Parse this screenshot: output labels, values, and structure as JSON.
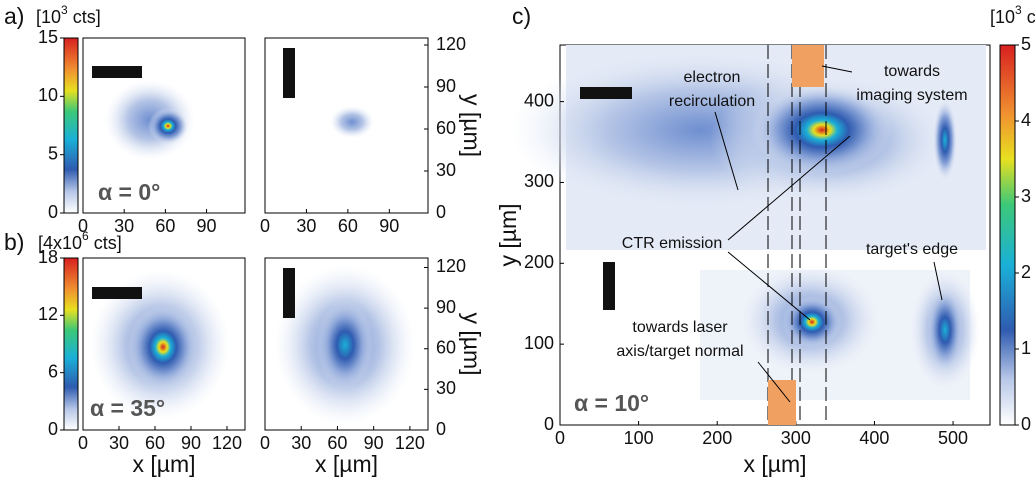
{
  "chart_data": [
    {
      "type": "colorbar",
      "panel_label": "a)",
      "unit": {
        "base": "[10",
        "exp": "3",
        "rest": " cts]"
      },
      "ylim": [
        0,
        15
      ],
      "yticks": [
        0,
        5,
        10,
        15
      ]
    },
    {
      "type": "heatmap",
      "xlim": [
        0,
        118
      ],
      "ylim": [
        0,
        125
      ],
      "xticks": [
        0,
        30,
        60,
        90
      ],
      "annotation": "α = 0°"
    },
    {
      "type": "heatmap",
      "xlim": [
        0,
        118
      ],
      "ylim": [
        0,
        125
      ],
      "xticks": [
        0,
        30,
        60,
        90
      ],
      "yticks": [
        0,
        30,
        60,
        90,
        120
      ],
      "ylabel": "y [µm]"
    },
    {
      "type": "colorbar",
      "panel_label": "b)",
      "unit": {
        "base": "[4x10",
        "exp": "6",
        "rest": " cts]"
      },
      "ylim": [
        0,
        18
      ],
      "yticks": [
        0,
        6,
        12,
        18
      ]
    },
    {
      "type": "heatmap",
      "xlim": [
        0,
        135
      ],
      "ylim": [
        0,
        127
      ],
      "xticks": [
        0,
        30,
        60,
        90,
        120
      ],
      "xlabel": "x [µm]",
      "annotation": "α = 35°"
    },
    {
      "type": "heatmap",
      "xlim": [
        0,
        135
      ],
      "ylim": [
        0,
        127
      ],
      "xticks": [
        0,
        30,
        60,
        90,
        120
      ],
      "yticks": [
        0,
        30,
        60,
        90,
        120
      ],
      "xlabel": "x [µm]",
      "ylabel": "y [µm]"
    },
    {
      "type": "heatmap",
      "panel_label": "c)",
      "xlim": [
        0,
        547
      ],
      "ylim": [
        0,
        470
      ],
      "xticks": [
        0,
        100,
        200,
        300,
        400,
        500
      ],
      "yticks": [
        0,
        100,
        200,
        300,
        400
      ],
      "xlabel": "x [µm]",
      "ylabel": "y [µm]",
      "annotation": "α = 10°",
      "notes": [
        [
          "electron",
          "recirculation"
        ],
        [
          "towards",
          "imaging system"
        ],
        [
          "CTR emission"
        ],
        [
          "target's edge"
        ],
        [
          "towards laser",
          "axis/target normal"
        ]
      ]
    },
    {
      "type": "colorbar",
      "unit": {
        "base": "[10",
        "exp": "3",
        "rest": " cts]"
      },
      "ylim": [
        0,
        5
      ],
      "yticks": [
        0,
        1,
        2,
        3,
        4,
        5
      ]
    }
  ]
}
